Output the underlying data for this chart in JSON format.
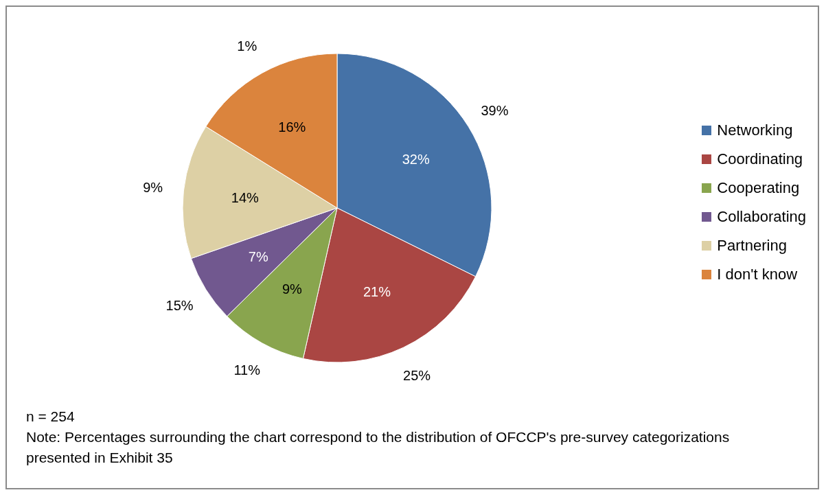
{
  "chart_data": {
    "type": "pie",
    "categories": [
      "Networking",
      "Coordinating",
      "Cooperating",
      "Collaborating",
      "Partnering",
      "I don't know"
    ],
    "values": [
      32,
      21,
      9,
      7,
      14,
      16
    ],
    "value_labels": [
      "32%",
      "21%",
      "9%",
      "7%",
      "14%",
      "16%"
    ],
    "colors": [
      "#4572a7",
      "#aa4643",
      "#89a54e",
      "#71588f",
      "#ddd0a5",
      "#db843d"
    ],
    "legend": "right",
    "annotations": [
      {
        "text": "39%",
        "x": "Networking"
      },
      {
        "text": "25%",
        "x": "Coordinating"
      },
      {
        "text": "11%",
        "x": "Cooperating"
      },
      {
        "text": "15%",
        "x": "Collaborating"
      },
      {
        "text": "9%",
        "x": "Partnering"
      },
      {
        "text": "1%",
        "x": "I don't know"
      },
      "n = 254",
      "Note: Percentages surrounding the chart correspond to the distribution of OFCCP's pre-survey categorizations presented in Exhibit 35"
    ]
  }
}
